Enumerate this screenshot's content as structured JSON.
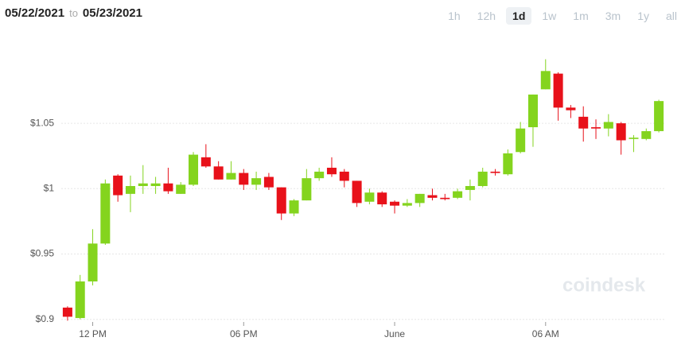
{
  "header": {
    "from": "05/22/2021",
    "joiner": "to",
    "to": "05/23/2021"
  },
  "range_buttons": [
    {
      "label": "1h",
      "active": false
    },
    {
      "label": "12h",
      "active": false
    },
    {
      "label": "1d",
      "active": true
    },
    {
      "label": "1w",
      "active": false
    },
    {
      "label": "1m",
      "active": false
    },
    {
      "label": "3m",
      "active": false
    },
    {
      "label": "1y",
      "active": false
    },
    {
      "label": "all",
      "active": false
    }
  ],
  "chart_data": {
    "type": "candlestick",
    "watermark": "coindesk",
    "categories": [
      null,
      null,
      "12 PM",
      null,
      null,
      null,
      null,
      null,
      null,
      null,
      null,
      null,
      null,
      null,
      "06 PM",
      null,
      null,
      null,
      null,
      null,
      null,
      null,
      null,
      null,
      null,
      null,
      "June",
      null,
      null,
      null,
      null,
      null,
      null,
      null,
      null,
      null,
      null,
      null,
      "06 AM",
      null,
      null,
      null,
      null,
      null,
      null,
      null,
      null,
      null
    ],
    "open": [
      0.909,
      0.901,
      0.929,
      0.958,
      1.01,
      0.996,
      1.002,
      1.002,
      1.004,
      0.996,
      1.003,
      1.024,
      1.017,
      1.007,
      1.012,
      1.003,
      1.009,
      1.001,
      0.981,
      0.991,
      1.008,
      1.016,
      1.013,
      1.006,
      0.99,
      0.997,
      0.99,
      0.987,
      0.989,
      0.995,
      0.993,
      0.993,
      0.999,
      1.002,
      1.013,
      1.011,
      1.028,
      1.047,
      1.076,
      1.088,
      1.062,
      1.055,
      1.047,
      1.046,
      1.05,
      1.038,
      1.038,
      1.044
    ],
    "high": [
      0.91,
      0.934,
      0.969,
      1.007,
      1.011,
      1.01,
      1.018,
      1.009,
      1.016,
      1.005,
      1.028,
      1.034,
      1.021,
      1.021,
      1.015,
      1.013,
      1.012,
      1.001,
      0.992,
      1.015,
      1.016,
      1.024,
      1.015,
      1.006,
      1.0,
      0.998,
      0.991,
      0.992,
      0.996,
      1.0,
      0.996,
      1.0,
      1.007,
      1.016,
      1.015,
      1.03,
      1.051,
      1.072,
      1.099,
      1.089,
      1.064,
      1.063,
      1.053,
      1.057,
      1.051,
      1.041,
      1.046,
      1.068
    ],
    "low": [
      0.899,
      0.9,
      0.926,
      0.957,
      0.99,
      0.982,
      0.996,
      0.996,
      0.996,
      0.996,
      1.002,
      1.016,
      1.007,
      1.007,
      0.999,
      0.999,
      0.999,
      0.976,
      0.979,
      0.991,
      1.006,
      1.009,
      1.001,
      0.986,
      0.988,
      0.986,
      0.981,
      0.986,
      0.986,
      0.991,
      0.991,
      0.992,
      0.991,
      1.001,
      1.01,
      1.01,
      1.027,
      1.032,
      1.076,
      1.052,
      1.054,
      1.036,
      1.038,
      1.04,
      1.026,
      1.028,
      1.037,
      1.043
    ],
    "close": [
      0.902,
      0.929,
      0.958,
      1.004,
      0.995,
      1.002,
      1.004,
      1.004,
      0.998,
      1.003,
      1.026,
      1.017,
      1.007,
      1.012,
      1.003,
      1.008,
      1.001,
      0.981,
      0.991,
      1.008,
      1.013,
      1.011,
      1.006,
      0.989,
      0.997,
      0.988,
      0.987,
      0.989,
      0.996,
      0.993,
      0.992,
      0.998,
      1.002,
      1.013,
      1.012,
      1.027,
      1.046,
      1.072,
      1.09,
      1.062,
      1.06,
      1.046,
      1.046,
      1.051,
      1.037,
      1.039,
      1.044,
      1.067
    ],
    "up_color": "#84d41e",
    "down_color": "#e8111a",
    "ylim": [
      0.898,
      1.12
    ],
    "yticks": [
      {
        "value": 0.9,
        "label": "$0.9"
      },
      {
        "value": 0.95,
        "label": "$0.95"
      },
      {
        "value": 1,
        "label": "$1"
      },
      {
        "value": 1.05,
        "label": "$1.05"
      }
    ],
    "grid": true
  }
}
